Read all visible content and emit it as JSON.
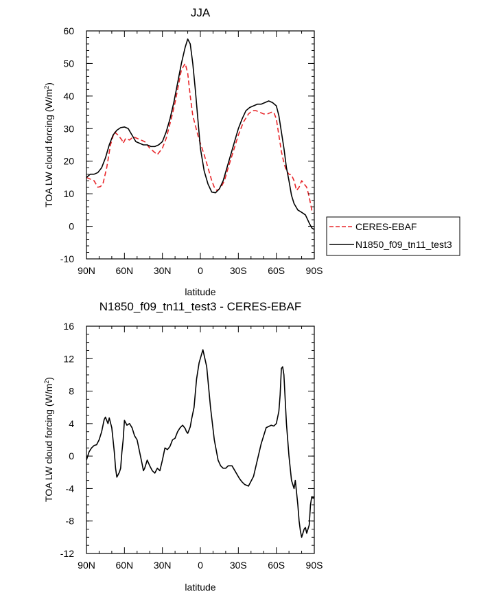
{
  "chart_data": [
    {
      "type": "line",
      "title": "JJA",
      "xlabel": "latitude",
      "ylabel": "TOA LW cloud forcing (W/m",
      "ylabel_sup": "2",
      "ylabel_close": ")",
      "xlim": [
        90,
        -90
      ],
      "ylim": [
        -10,
        60
      ],
      "x_ticks": [
        {
          "value": 90,
          "label": "90N"
        },
        {
          "value": 60,
          "label": "60N"
        },
        {
          "value": 30,
          "label": "30N"
        },
        {
          "value": 0,
          "label": "0"
        },
        {
          "value": -30,
          "label": "30S"
        },
        {
          "value": -60,
          "label": "60S"
        },
        {
          "value": -90,
          "label": "90S"
        }
      ],
      "y_ticks": [
        -10,
        0,
        10,
        20,
        30,
        40,
        50,
        60
      ],
      "legend": {
        "placement": "right",
        "entries": [
          "CERES-EBAF",
          "N1850_f09_tn11_test3"
        ]
      },
      "series": [
        {
          "name": "CERES-EBAF",
          "color": "#e8262a",
          "style": "dashed",
          "x": [
            90,
            87,
            84,
            81,
            79,
            77,
            74,
            71,
            68,
            65,
            62,
            61,
            59,
            56,
            53,
            50,
            47,
            44,
            40,
            37,
            34,
            30,
            27,
            23,
            20,
            17,
            15,
            12,
            10,
            8,
            6,
            4,
            2,
            0,
            -3,
            -6,
            -9,
            -11,
            -13,
            -15,
            -17,
            -19,
            -22,
            -26,
            -30,
            -34,
            -38,
            -41,
            -44,
            -47,
            -50,
            -53,
            -56,
            -58,
            -60,
            -62,
            -64,
            -66,
            -68,
            -70,
            -72,
            -74,
            -76,
            -78,
            -80,
            -82,
            -84,
            -86,
            -88,
            -90
          ],
          "y": [
            15,
            14.5,
            14,
            12,
            12.2,
            13,
            18,
            25,
            29,
            28,
            26.5,
            25.5,
            27,
            26.5,
            27.5,
            27,
            26.5,
            26,
            24,
            23,
            22,
            24,
            27,
            33,
            38,
            44,
            48,
            50,
            47,
            40,
            34,
            31,
            28,
            25.5,
            22,
            18,
            14,
            12,
            11,
            11.5,
            12.5,
            14,
            18,
            23,
            28,
            32,
            34.5,
            35.5,
            35.5,
            35,
            34.5,
            34.5,
            35,
            35,
            33,
            28,
            23,
            19.5,
            17,
            16,
            15.8,
            14,
            11,
            12,
            14,
            13,
            12,
            9,
            5,
            4
          ]
        },
        {
          "name": "N1850_f09_tn11_test3",
          "color": "#000000",
          "style": "solid",
          "x": [
            90,
            87,
            84,
            81,
            78,
            75,
            72,
            69,
            66,
            63,
            60,
            57,
            54,
            51,
            48,
            45,
            42,
            39,
            36,
            33,
            30,
            27,
            24,
            21,
            18,
            15,
            12,
            10,
            8,
            6,
            4,
            2,
            0,
            -3,
            -6,
            -9,
            -12,
            -15,
            -18,
            -21,
            -24,
            -27,
            -30,
            -33,
            -36,
            -39,
            -42,
            -45,
            -48,
            -51,
            -54,
            -57,
            -60,
            -62,
            -64,
            -66,
            -68,
            -70,
            -72,
            -74,
            -77,
            -80,
            -83,
            -86,
            -88,
            -90
          ],
          "y": [
            15,
            16,
            16,
            16.5,
            18,
            21,
            25,
            28,
            29.5,
            30.3,
            30.5,
            30,
            28,
            26,
            25.5,
            25,
            25,
            24.5,
            24.5,
            25,
            26,
            29,
            33,
            38,
            44,
            50,
            55,
            57.5,
            56,
            50,
            42,
            33,
            24,
            17,
            13,
            10.5,
            10.3,
            11.5,
            14,
            18,
            22,
            26,
            30,
            33,
            35.5,
            36.5,
            37,
            37.5,
            37.5,
            38,
            38.5,
            38,
            37,
            34,
            29,
            24,
            18,
            14,
            9.5,
            7,
            5,
            4.3,
            3.5,
            1,
            -0.5,
            -1
          ]
        }
      ]
    },
    {
      "type": "line",
      "title": "N1850_f09_tn11_test3 - CERES-EBAF",
      "xlabel": "latitude",
      "ylabel": "TOA LW cloud forcing (W/m",
      "ylabel_sup": "2",
      "ylabel_close": ")",
      "xlim": [
        90,
        -90
      ],
      "ylim": [
        -12,
        16
      ],
      "x_ticks": [
        {
          "value": 90,
          "label": "90N"
        },
        {
          "value": 60,
          "label": "60N"
        },
        {
          "value": 30,
          "label": "30N"
        },
        {
          "value": 0,
          "label": "0"
        },
        {
          "value": -30,
          "label": "30S"
        },
        {
          "value": -60,
          "label": "60S"
        },
        {
          "value": -90,
          "label": "90S"
        }
      ],
      "y_ticks": [
        -12,
        -8,
        -4,
        0,
        4,
        8,
        12,
        16
      ],
      "series": [
        {
          "name": "",
          "color": "#000000",
          "style": "solid",
          "x": [
            90,
            88,
            86,
            84,
            82,
            80,
            78,
            76,
            75,
            73,
            72,
            70,
            68,
            67,
            66,
            64,
            63,
            62,
            61,
            60,
            58,
            56,
            54,
            52,
            50,
            48,
            46,
            45,
            44,
            42,
            40,
            38,
            36,
            34,
            32,
            30,
            28,
            26,
            24,
            22,
            20,
            18,
            16,
            14,
            12,
            11,
            10,
            9,
            8,
            7,
            5,
            3,
            1,
            -2,
            -5,
            -8,
            -11,
            -14,
            -16,
            -18,
            -20,
            -22,
            -25,
            -28,
            -31,
            -33,
            -35,
            -38,
            -42,
            -45,
            -48,
            -52,
            -56,
            -58,
            -60,
            -62,
            -63,
            -64,
            -65,
            -66,
            -67,
            -68,
            -70,
            -72,
            -74,
            -75,
            -76,
            -77,
            -78,
            -79,
            -80,
            -81,
            -82,
            -83,
            -84,
            -85,
            -86,
            -87,
            -88,
            -89,
            -90
          ],
          "y": [
            -0.5,
            0.5,
            1,
            1.3,
            1.4,
            2,
            3,
            4.5,
            4.8,
            4.0,
            4.7,
            3.5,
            0.5,
            -1.5,
            -2.6,
            -2,
            -1.5,
            0.5,
            2,
            4.4,
            3.8,
            4.0,
            3.5,
            2.5,
            2.0,
            0.5,
            -1,
            -1.8,
            -1.5,
            -0.5,
            -1.2,
            -1.8,
            -2.1,
            -1.5,
            -1.8,
            -0.5,
            1.0,
            0.8,
            1.2,
            2.0,
            2.2,
            3.0,
            3.5,
            3.8,
            3.4,
            3.0,
            2.8,
            3.2,
            3.6,
            4.5,
            6,
            9.5,
            11.5,
            13.1,
            11,
            6,
            2,
            -0.5,
            -1.2,
            -1.5,
            -1.5,
            -1.2,
            -1.2,
            -2,
            -2.8,
            -3.2,
            -3.5,
            -3.7,
            -2.5,
            -0.5,
            1.5,
            3.5,
            3.8,
            3.7,
            4.0,
            5.5,
            7.5,
            10.8,
            11,
            10,
            7,
            4,
            0,
            -3,
            -4,
            -3,
            -4.5,
            -6,
            -8,
            -9.2,
            -10,
            -9.5,
            -9,
            -8.8,
            -9.5,
            -9,
            -8.5,
            -6,
            -5,
            -5.2,
            -5
          ]
        }
      ]
    }
  ]
}
